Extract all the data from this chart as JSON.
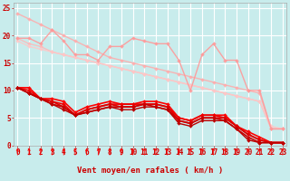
{
  "xlabel": "Vent moyen/en rafales ( km/h )",
  "background_color": "#c8ecec",
  "grid_color": "#ffffff",
  "x": [
    0,
    1,
    2,
    3,
    4,
    5,
    6,
    7,
    8,
    9,
    10,
    11,
    12,
    13,
    14,
    15,
    16,
    17,
    18,
    19,
    20,
    21,
    22,
    23
  ],
  "series": [
    {
      "y": [
        24.0,
        23.0,
        22.0,
        21.0,
        20.0,
        19.0,
        18.0,
        17.0,
        16.0,
        15.5,
        15.0,
        14.5,
        14.0,
        13.5,
        13.0,
        12.5,
        12.0,
        11.5,
        11.0,
        10.5,
        10.0,
        9.5,
        3.0,
        3.0
      ],
      "color": "#ffaaaa",
      "linewidth": 1.0,
      "marker": "D",
      "markersize": 2,
      "alpha": 0.85,
      "linestyle": "-"
    },
    {
      "y": [
        19.5,
        18.5,
        18.0,
        17.0,
        16.5,
        16.0,
        15.5,
        15.0,
        14.5,
        14.0,
        13.5,
        13.0,
        12.5,
        12.0,
        11.5,
        11.0,
        10.5,
        10.0,
        9.5,
        9.0,
        8.5,
        8.0,
        3.0,
        3.0
      ],
      "color": "#ffb8b8",
      "linewidth": 1.0,
      "marker": "D",
      "markersize": 2,
      "alpha": 0.85,
      "linestyle": "-"
    },
    {
      "y": [
        19.0,
        18.0,
        17.5,
        17.0,
        16.5,
        16.0,
        15.5,
        15.0,
        14.5,
        14.0,
        13.5,
        13.0,
        12.5,
        12.0,
        11.5,
        11.0,
        10.5,
        10.0,
        9.5,
        9.0,
        8.5,
        8.0,
        3.5,
        3.0
      ],
      "color": "#ffc8c8",
      "linewidth": 1.0,
      "marker": "D",
      "markersize": 2,
      "alpha": 0.85,
      "linestyle": "-"
    },
    {
      "y": [
        19.5,
        19.5,
        18.5,
        21.0,
        19.0,
        16.5,
        16.5,
        15.5,
        18.0,
        18.0,
        19.5,
        19.0,
        18.5,
        18.5,
        15.5,
        10.0,
        16.5,
        18.5,
        15.5,
        15.5,
        10.0,
        10.0,
        3.0,
        3.0
      ],
      "color": "#ff9999",
      "linewidth": 1.0,
      "marker": "D",
      "markersize": 2,
      "alpha": 0.9,
      "linestyle": "-"
    },
    {
      "y": [
        10.5,
        10.5,
        8.5,
        8.5,
        8.0,
        6.0,
        7.0,
        7.5,
        8.0,
        7.5,
        7.5,
        8.0,
        8.0,
        7.5,
        5.0,
        4.5,
        5.5,
        5.5,
        5.5,
        3.5,
        2.5,
        1.5,
        0.5,
        0.5
      ],
      "color": "#ff0000",
      "linewidth": 1.2,
      "marker": "D",
      "markersize": 2,
      "alpha": 1.0,
      "linestyle": "-"
    },
    {
      "y": [
        10.5,
        10.0,
        8.5,
        8.0,
        7.5,
        5.5,
        6.5,
        7.0,
        7.5,
        7.5,
        7.5,
        7.5,
        7.5,
        7.0,
        5.0,
        4.5,
        5.5,
        5.5,
        5.0,
        3.5,
        2.0,
        1.0,
        0.5,
        0.5
      ],
      "color": "#ee0000",
      "linewidth": 1.2,
      "marker": "D",
      "markersize": 2,
      "alpha": 1.0,
      "linestyle": "-"
    },
    {
      "y": [
        10.5,
        9.5,
        8.5,
        8.0,
        7.0,
        5.5,
        6.5,
        7.0,
        7.5,
        7.0,
        7.0,
        7.5,
        7.5,
        7.0,
        4.5,
        4.0,
        5.0,
        5.0,
        5.0,
        3.5,
        2.0,
        1.0,
        0.5,
        0.5
      ],
      "color": "#dd0000",
      "linewidth": 1.2,
      "marker": "D",
      "markersize": 2,
      "alpha": 1.0,
      "linestyle": "-"
    },
    {
      "y": [
        10.5,
        9.5,
        8.5,
        7.5,
        7.0,
        5.5,
        6.0,
        6.5,
        7.0,
        7.0,
        7.0,
        7.5,
        7.0,
        6.5,
        4.5,
        4.0,
        5.0,
        5.0,
        4.5,
        3.0,
        1.5,
        0.5,
        0.5,
        0.5
      ],
      "color": "#cc0000",
      "linewidth": 1.2,
      "marker": "D",
      "markersize": 2,
      "alpha": 1.0,
      "linestyle": "-"
    },
    {
      "y": [
        10.5,
        9.5,
        8.5,
        7.5,
        6.5,
        5.5,
        6.0,
        6.5,
        7.0,
        6.5,
        6.5,
        7.0,
        7.0,
        6.5,
        4.0,
        3.5,
        4.5,
        4.5,
        4.5,
        3.0,
        1.0,
        0.5,
        0.5,
        0.5
      ],
      "color": "#bb0000",
      "linewidth": 1.0,
      "marker": "D",
      "markersize": 2,
      "alpha": 1.0,
      "linestyle": "-"
    }
  ],
  "ylim": [
    0,
    26
  ],
  "xlim": [
    -0.3,
    23.3
  ],
  "yticks": [
    0,
    5,
    10,
    15,
    20,
    25
  ],
  "xticks": [
    0,
    1,
    2,
    3,
    4,
    5,
    6,
    7,
    8,
    9,
    10,
    11,
    12,
    13,
    14,
    15,
    16,
    17,
    18,
    19,
    20,
    21,
    22,
    23
  ],
  "tick_fontsize": 5.5,
  "xlabel_fontsize": 6.5,
  "arrow_color": "#ff0000",
  "figsize": [
    3.2,
    2.0
  ],
  "dpi": 100
}
